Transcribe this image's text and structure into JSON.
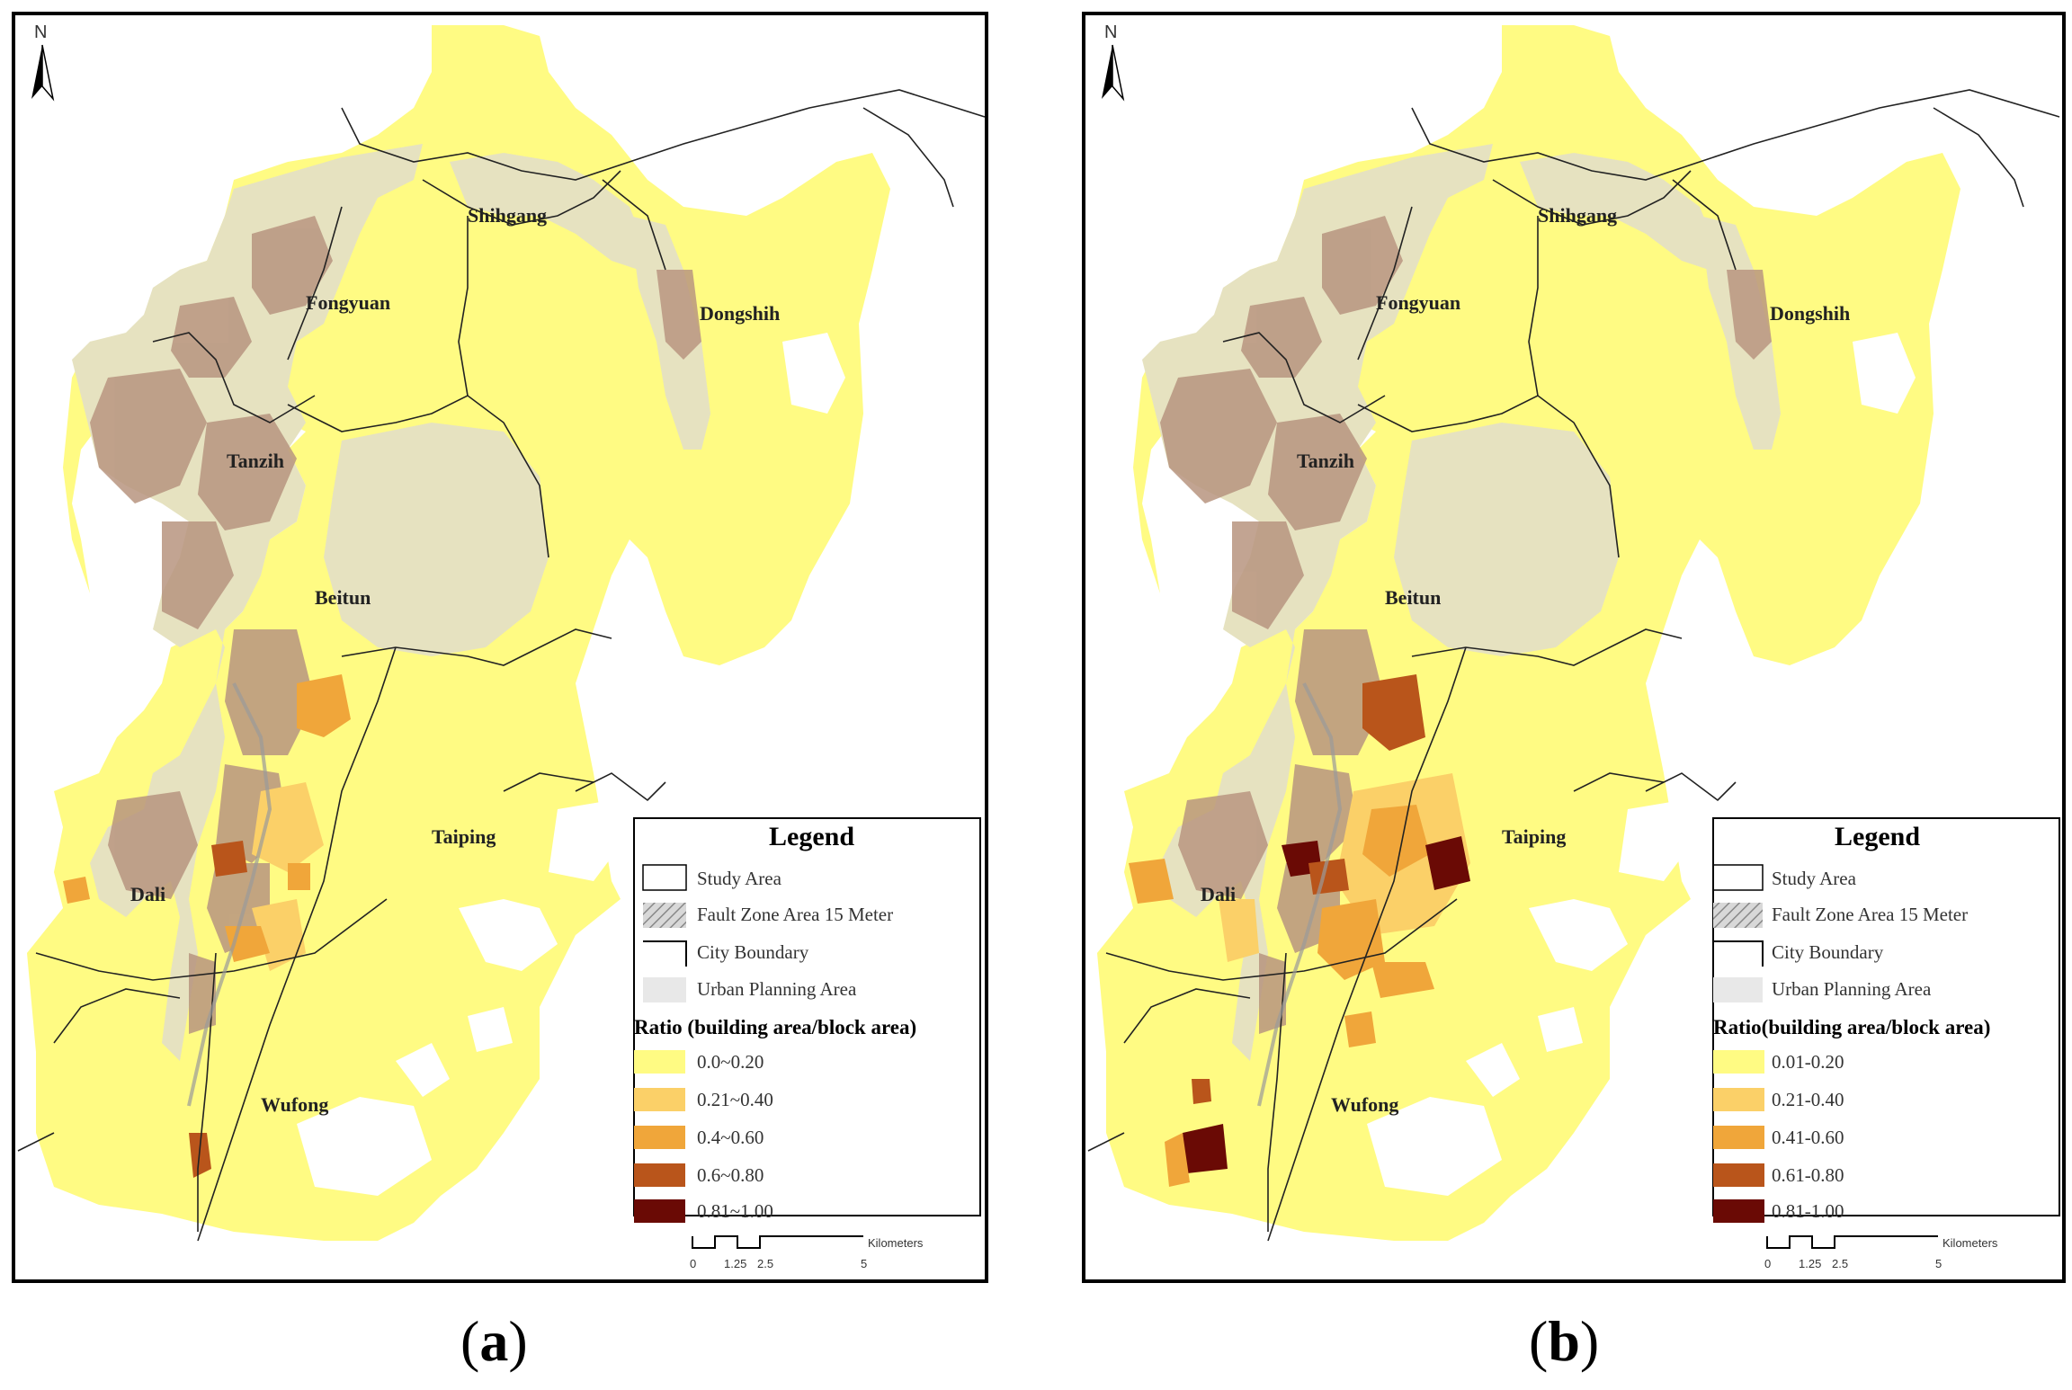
{
  "panels": [
    {
      "caption_letter": "a",
      "north_label": "N",
      "places": [
        "Shihgang",
        "Fongyuan",
        "Dongshih",
        "Tanzih",
        "Beitun",
        "Taiping",
        "Dali",
        "Wufong"
      ],
      "legend": {
        "title": "Legend",
        "items": [
          "Study Area",
          "Fault Zone Area 15 Meter",
          "City Boundary",
          "Urban Planning Area"
        ],
        "ratio_title": "Ratio (building area/block area)",
        "classes": [
          "0.0~0.20",
          "0.21~0.40",
          "0.4~0.60",
          "0.6~0.80",
          "0.81~1.00"
        ]
      },
      "scale": {
        "ticks": [
          "0",
          "1.25",
          "2.5",
          "5"
        ],
        "unit": "Kilometers"
      }
    },
    {
      "caption_letter": "b",
      "north_label": "N",
      "places": [
        "Shihgang",
        "Fongyuan",
        "Dongshih",
        "Tanzih",
        "Beitun",
        "Taiping",
        "Dali",
        "Wufong"
      ],
      "legend": {
        "title": "Legend",
        "items": [
          "Study Area",
          "Fault Zone Area 15 Meter",
          "City Boundary",
          "Urban Planning Area"
        ],
        "ratio_title": "Ratio(building area/block area)",
        "classes": [
          "0.01-0.20",
          "0.21-0.40",
          "0.41-0.60",
          "0.61-0.80",
          "0.81-1.00"
        ]
      },
      "scale": {
        "ticks": [
          "0",
          "1.25",
          "2.5",
          "5"
        ],
        "unit": "Kilometers"
      }
    }
  ],
  "colors": {
    "class_fills": [
      "#fffb83",
      "#fbd068",
      "#f0a63a",
      "#b9551b",
      "#6a0a05"
    ],
    "urban_planning": "#e6e2c0",
    "urban_block": "#b89580",
    "frame": "#000000"
  }
}
